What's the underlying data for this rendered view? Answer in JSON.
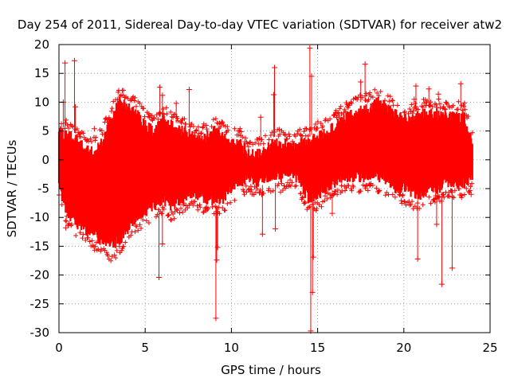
{
  "chart_data": {
    "type": "scatter",
    "title": "Day 254 of 2011, Sidereal Day-to-day VTEC variation (SDTVAR) for receiver atw2",
    "xlabel": "GPS time / hours",
    "ylabel": "SDTVAR / TECUs",
    "xlim": [
      0,
      25
    ],
    "ylim": [
      -30,
      20
    ],
    "xticks": [
      0,
      5,
      10,
      15,
      20,
      25
    ],
    "xtick_labels": [
      "0",
      "5",
      "10",
      "15",
      "20",
      "25"
    ],
    "yticks": [
      20,
      15,
      10,
      5,
      0,
      -5,
      -10,
      -15,
      -20,
      -25,
      -30
    ],
    "ytick_labels": [
      "20",
      "15",
      "10",
      "5",
      "0",
      "-5",
      "-10",
      "-15",
      "-20",
      "-25",
      "-30"
    ],
    "grid": true,
    "marker": "+",
    "color": "#ff0000",
    "series": [
      {
        "name": "atw2",
        "envelope": {
          "hours": [
            0,
            0.3,
            0.7,
            1.0,
            1.5,
            2.0,
            2.5,
            3.0,
            3.5,
            4.0,
            4.5,
            5.0,
            5.5,
            6.0,
            6.5,
            7.0,
            7.5,
            8.0,
            8.5,
            9.0,
            9.5,
            10.0,
            10.5,
            11.0,
            11.5,
            12.0,
            12.5,
            13.0,
            13.5,
            14.0,
            14.5,
            15.0,
            15.5,
            16.0,
            16.5,
            17.0,
            17.5,
            18.0,
            18.5,
            19.0,
            19.5,
            20.0,
            20.5,
            21.0,
            21.5,
            22.0,
            22.5,
            23.0,
            23.5,
            24.0
          ],
          "upper": [
            6,
            5.5,
            5,
            4.5,
            3,
            2.5,
            4,
            8,
            11,
            10,
            9,
            7,
            6,
            8,
            7,
            6,
            6,
            4,
            5,
            6,
            5,
            4,
            4,
            2,
            2,
            3,
            4,
            4,
            3,
            4,
            4,
            5,
            6,
            7,
            8,
            9,
            10,
            10,
            11,
            10,
            9,
            8,
            8,
            9,
            9,
            9,
            8.5,
            8.5,
            8.5,
            4
          ],
          "lower": [
            -6,
            -9,
            -11,
            -12,
            -13,
            -14,
            -15,
            -16,
            -15,
            -13,
            -11,
            -10,
            -9,
            -8,
            -9,
            -8,
            -7,
            -7,
            -8,
            -8,
            -8,
            -6,
            -5,
            -4,
            -5,
            -4,
            -4,
            -4,
            -3,
            -5,
            -8,
            -7,
            -6,
            -5,
            -4,
            -4,
            -4,
            -4,
            -4,
            -5,
            -6,
            -6,
            -7,
            -7,
            -6,
            -6,
            -5,
            -5,
            -5,
            -4
          ]
        },
        "outliers": [
          {
            "x": 0.35,
            "y": 16.8
          },
          {
            "x": 0.9,
            "y": 17.2
          },
          {
            "x": 0.25,
            "y": 10.0
          },
          {
            "x": 0.95,
            "y": 9.2
          },
          {
            "x": 2.05,
            "y": 5.4
          },
          {
            "x": 0.4,
            "y": -11.8
          },
          {
            "x": 5.85,
            "y": 12.6
          },
          {
            "x": 6.0,
            "y": 11.2
          },
          {
            "x": 6.8,
            "y": 9.8
          },
          {
            "x": 7.55,
            "y": 12.2
          },
          {
            "x": 5.8,
            "y": -20.4
          },
          {
            "x": 6.0,
            "y": -14.6
          },
          {
            "x": 9.1,
            "y": -27.5
          },
          {
            "x": 9.15,
            "y": -17.4
          },
          {
            "x": 9.2,
            "y": -15.2
          },
          {
            "x": 11.8,
            "y": -12.9
          },
          {
            "x": 12.5,
            "y": 16.0
          },
          {
            "x": 12.45,
            "y": 11.3
          },
          {
            "x": 12.55,
            "y": -12.0
          },
          {
            "x": 11.7,
            "y": 7.4
          },
          {
            "x": 14.55,
            "y": 19.4
          },
          {
            "x": 14.65,
            "y": 14.5
          },
          {
            "x": 14.6,
            "y": -29.7
          },
          {
            "x": 14.7,
            "y": -23.0
          },
          {
            "x": 14.75,
            "y": -16.9
          },
          {
            "x": 15.85,
            "y": -9.3
          },
          {
            "x": 17.75,
            "y": 16.6
          },
          {
            "x": 17.5,
            "y": 13.5
          },
          {
            "x": 20.7,
            "y": 12.8
          },
          {
            "x": 20.6,
            "y": 10.5
          },
          {
            "x": 21.45,
            "y": 12.3
          },
          {
            "x": 20.8,
            "y": -17.2
          },
          {
            "x": 21.9,
            "y": -11.2
          },
          {
            "x": 22.2,
            "y": -21.6
          },
          {
            "x": 22.8,
            "y": -18.8
          },
          {
            "x": 23.3,
            "y": 13.2
          },
          {
            "x": 22.0,
            "y": 11.4
          },
          {
            "x": 23.9,
            "y": -6.0
          }
        ]
      }
    ]
  }
}
